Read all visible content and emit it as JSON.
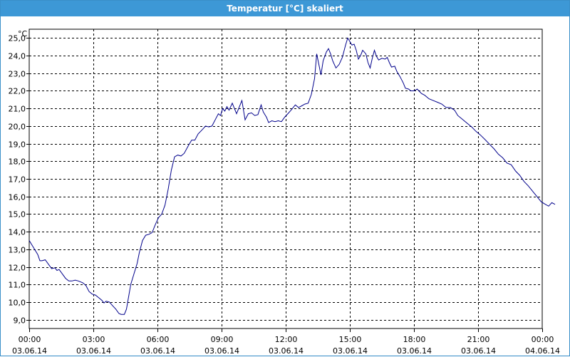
{
  "window": {
    "title": "Temperatur [°C] skaliert"
  },
  "chart_data": {
    "type": "line",
    "title": "Temperatur [°C] skaliert",
    "yunit": "°C",
    "ylim": [
      8.5,
      25.5
    ],
    "xlim": [
      0,
      24
    ],
    "grid": true,
    "line_color": "#00008b",
    "yticks": [
      {
        "v": 9,
        "label": "9,0"
      },
      {
        "v": 10,
        "label": "10,0"
      },
      {
        "v": 11,
        "label": "11,0"
      },
      {
        "v": 12,
        "label": "12,0"
      },
      {
        "v": 13,
        "label": "13,0"
      },
      {
        "v": 14,
        "label": "14,0"
      },
      {
        "v": 15,
        "label": "15,0"
      },
      {
        "v": 16,
        "label": "16,0"
      },
      {
        "v": 17,
        "label": "17,0"
      },
      {
        "v": 18,
        "label": "18,0"
      },
      {
        "v": 19,
        "label": "19,0"
      },
      {
        "v": 20,
        "label": "20,0"
      },
      {
        "v": 21,
        "label": "21,0"
      },
      {
        "v": 22,
        "label": "22,0"
      },
      {
        "v": 23,
        "label": "23,0"
      },
      {
        "v": 24,
        "label": "24,0"
      },
      {
        "v": 25,
        "label": "25,0"
      }
    ],
    "xticks": [
      {
        "v": 0,
        "time": "00:00",
        "date": "03.06.14"
      },
      {
        "v": 3,
        "time": "03:00",
        "date": "03.06.14"
      },
      {
        "v": 6,
        "time": "06:00",
        "date": "03.06.14"
      },
      {
        "v": 9,
        "time": "09:00",
        "date": "03.06.14"
      },
      {
        "v": 12,
        "time": "12:00",
        "date": "03.06.14"
      },
      {
        "v": 15,
        "time": "15:00",
        "date": "03.06.14"
      },
      {
        "v": 18,
        "time": "18:00",
        "date": "03.06.14"
      },
      {
        "v": 21,
        "time": "21:00",
        "date": "03.06.14"
      },
      {
        "v": 24,
        "time": "00:00",
        "date": "04.06.14"
      }
    ],
    "series": [
      {
        "points": [
          [
            0.0,
            13.5
          ],
          [
            0.2,
            13.1
          ],
          [
            0.4,
            12.7
          ],
          [
            0.5,
            12.35
          ],
          [
            0.6,
            12.35
          ],
          [
            0.75,
            12.4
          ],
          [
            0.9,
            12.15
          ],
          [
            1.05,
            11.9
          ],
          [
            1.2,
            11.95
          ],
          [
            1.3,
            11.8
          ],
          [
            1.4,
            11.85
          ],
          [
            1.55,
            11.6
          ],
          [
            1.7,
            11.35
          ],
          [
            1.85,
            11.2
          ],
          [
            2.0,
            11.2
          ],
          [
            2.15,
            11.25
          ],
          [
            2.3,
            11.2
          ],
          [
            2.5,
            11.1
          ],
          [
            2.65,
            10.95
          ],
          [
            2.8,
            10.6
          ],
          [
            2.95,
            10.45
          ],
          [
            3.1,
            10.4
          ],
          [
            3.25,
            10.25
          ],
          [
            3.4,
            10.1
          ],
          [
            3.5,
            9.95
          ],
          [
            3.6,
            10.05
          ],
          [
            3.75,
            10.0
          ],
          [
            3.9,
            9.8
          ],
          [
            4.05,
            9.6
          ],
          [
            4.2,
            9.35
          ],
          [
            4.3,
            9.3
          ],
          [
            4.45,
            9.3
          ],
          [
            4.55,
            9.6
          ],
          [
            4.65,
            10.3
          ],
          [
            4.75,
            11.0
          ],
          [
            4.9,
            11.6
          ],
          [
            5.05,
            12.2
          ],
          [
            5.15,
            12.8
          ],
          [
            5.3,
            13.5
          ],
          [
            5.45,
            13.8
          ],
          [
            5.6,
            13.85
          ],
          [
            5.75,
            13.95
          ],
          [
            5.9,
            14.4
          ],
          [
            6.05,
            14.8
          ],
          [
            6.2,
            15.0
          ],
          [
            6.35,
            15.5
          ],
          [
            6.5,
            16.4
          ],
          [
            6.65,
            17.5
          ],
          [
            6.8,
            18.25
          ],
          [
            6.95,
            18.35
          ],
          [
            7.1,
            18.3
          ],
          [
            7.25,
            18.45
          ],
          [
            7.45,
            18.9
          ],
          [
            7.6,
            19.2
          ],
          [
            7.75,
            19.2
          ],
          [
            7.9,
            19.55
          ],
          [
            8.1,
            19.8
          ],
          [
            8.25,
            20.0
          ],
          [
            8.4,
            19.95
          ],
          [
            8.55,
            20.0
          ],
          [
            8.7,
            20.35
          ],
          [
            8.85,
            20.7
          ],
          [
            8.95,
            20.6
          ],
          [
            9.05,
            21.0
          ],
          [
            9.15,
            20.85
          ],
          [
            9.25,
            21.1
          ],
          [
            9.35,
            20.9
          ],
          [
            9.5,
            21.3
          ],
          [
            9.6,
            21.0
          ],
          [
            9.7,
            20.7
          ],
          [
            9.8,
            21.0
          ],
          [
            9.95,
            21.45
          ],
          [
            10.1,
            20.35
          ],
          [
            10.25,
            20.7
          ],
          [
            10.4,
            20.75
          ],
          [
            10.55,
            20.6
          ],
          [
            10.7,
            20.65
          ],
          [
            10.85,
            21.2
          ],
          [
            10.95,
            20.8
          ],
          [
            11.1,
            20.5
          ],
          [
            11.2,
            20.2
          ],
          [
            11.35,
            20.3
          ],
          [
            11.5,
            20.25
          ],
          [
            11.65,
            20.3
          ],
          [
            11.8,
            20.25
          ],
          [
            11.95,
            20.5
          ],
          [
            12.1,
            20.7
          ],
          [
            12.25,
            20.9
          ],
          [
            12.45,
            21.2
          ],
          [
            12.6,
            21.05
          ],
          [
            12.75,
            21.15
          ],
          [
            12.9,
            21.25
          ],
          [
            13.05,
            21.3
          ],
          [
            13.2,
            21.8
          ],
          [
            13.35,
            22.7
          ],
          [
            13.45,
            24.1
          ],
          [
            13.55,
            23.5
          ],
          [
            13.65,
            22.9
          ],
          [
            13.75,
            23.7
          ],
          [
            13.9,
            24.2
          ],
          [
            14.0,
            24.4
          ],
          [
            14.1,
            24.1
          ],
          [
            14.2,
            23.7
          ],
          [
            14.35,
            23.3
          ],
          [
            14.5,
            23.5
          ],
          [
            14.65,
            23.9
          ],
          [
            14.8,
            24.6
          ],
          [
            14.9,
            25.0
          ],
          [
            15.0,
            24.8
          ],
          [
            15.1,
            24.6
          ],
          [
            15.2,
            24.65
          ],
          [
            15.3,
            24.3
          ],
          [
            15.4,
            23.8
          ],
          [
            15.5,
            24.0
          ],
          [
            15.6,
            24.3
          ],
          [
            15.75,
            24.1
          ],
          [
            15.85,
            23.6
          ],
          [
            15.95,
            23.3
          ],
          [
            16.05,
            23.85
          ],
          [
            16.15,
            24.3
          ],
          [
            16.25,
            23.95
          ],
          [
            16.35,
            23.75
          ],
          [
            16.5,
            23.85
          ],
          [
            16.65,
            23.8
          ],
          [
            16.75,
            23.9
          ],
          [
            16.85,
            23.6
          ],
          [
            16.95,
            23.35
          ],
          [
            17.1,
            23.4
          ],
          [
            17.2,
            23.1
          ],
          [
            17.35,
            22.8
          ],
          [
            17.5,
            22.45
          ],
          [
            17.6,
            22.15
          ],
          [
            17.75,
            22.1
          ],
          [
            17.85,
            22.0
          ],
          [
            18.0,
            22.0
          ],
          [
            18.15,
            22.1
          ],
          [
            18.35,
            21.85
          ],
          [
            18.5,
            21.75
          ],
          [
            18.7,
            21.55
          ],
          [
            18.9,
            21.45
          ],
          [
            19.1,
            21.35
          ],
          [
            19.3,
            21.25
          ],
          [
            19.5,
            21.05
          ],
          [
            19.7,
            21.05
          ],
          [
            19.9,
            20.9
          ],
          [
            20.05,
            20.6
          ],
          [
            20.25,
            20.4
          ],
          [
            20.5,
            20.15
          ],
          [
            20.7,
            19.95
          ],
          [
            20.9,
            19.7
          ],
          [
            21.1,
            19.5
          ],
          [
            21.35,
            19.2
          ],
          [
            21.55,
            18.95
          ],
          [
            21.75,
            18.7
          ],
          [
            21.95,
            18.4
          ],
          [
            22.15,
            18.2
          ],
          [
            22.35,
            17.9
          ],
          [
            22.55,
            17.8
          ],
          [
            22.75,
            17.45
          ],
          [
            22.95,
            17.2
          ],
          [
            23.15,
            16.85
          ],
          [
            23.35,
            16.6
          ],
          [
            23.55,
            16.3
          ],
          [
            23.75,
            16.0
          ],
          [
            23.95,
            15.7
          ],
          [
            24.15,
            15.55
          ],
          [
            24.3,
            15.45
          ],
          [
            24.45,
            15.65
          ],
          [
            24.6,
            15.55
          ]
        ]
      }
    ]
  }
}
